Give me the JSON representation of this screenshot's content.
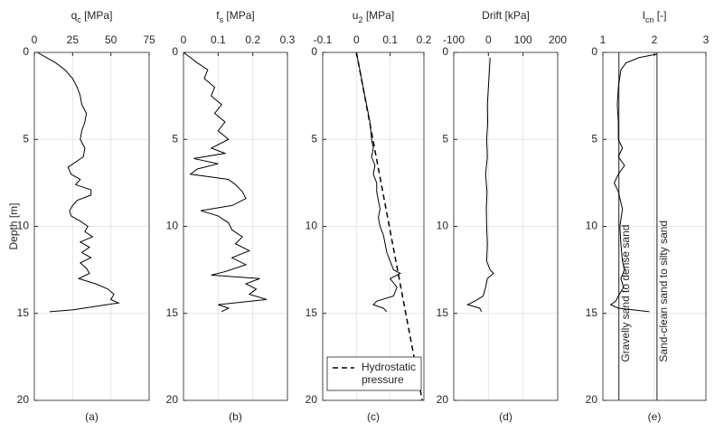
{
  "chart_data": [
    {
      "type": "line",
      "title_parts": [
        "q",
        "c",
        " [MPa]"
      ],
      "ylabel": "Depth [m]",
      "caption": "(a)",
      "xlim": [
        0,
        75
      ],
      "xticks": [
        0,
        25,
        50,
        75
      ],
      "ylim": [
        0,
        20
      ],
      "yticks": [
        0,
        5,
        10,
        15,
        20
      ],
      "invert_y": true,
      "grid": true,
      "series": [
        {
          "color": "#000000",
          "x": [
            2,
            8,
            14,
            20,
            25,
            28,
            30,
            31,
            34,
            33,
            31,
            30,
            33,
            32,
            27,
            22,
            24,
            30,
            27,
            37,
            37,
            28,
            25,
            23,
            24,
            30,
            35,
            33,
            38,
            30,
            36,
            31,
            37,
            30,
            34,
            36,
            29,
            40,
            48,
            52,
            50,
            55,
            40,
            25,
            10
          ],
          "y": [
            0,
            0.3,
            0.6,
            1,
            1.5,
            2,
            2.5,
            3,
            3.5,
            4,
            4.5,
            5,
            5.5,
            6,
            6.3,
            6.6,
            7,
            7.3,
            7.6,
            7.9,
            8.2,
            8.5,
            8.8,
            9.1,
            9.4,
            9.7,
            10,
            10.3,
            10.6,
            10.9,
            11.2,
            11.5,
            11.8,
            12.1,
            12.4,
            12.7,
            13,
            13.3,
            13.6,
            13.9,
            14.2,
            14.4,
            14.6,
            14.8,
            14.9
          ]
        }
      ]
    },
    {
      "type": "line",
      "title_parts": [
        "f",
        "s",
        " [MPa]"
      ],
      "caption": "(b)",
      "xlim": [
        0,
        0.3
      ],
      "xticks": [
        0,
        0.1,
        0.2,
        0.3
      ],
      "ylim": [
        0,
        20
      ],
      "yticks": [
        0,
        5,
        10,
        15,
        20
      ],
      "invert_y": true,
      "grid": true,
      "series": [
        {
          "color": "#000000",
          "x": [
            0,
            0.02,
            0.04,
            0.07,
            0.06,
            0.09,
            0.08,
            0.11,
            0.09,
            0.12,
            0.1,
            0.13,
            0.08,
            0.12,
            0.03,
            0.1,
            0.04,
            0.02,
            0.13,
            0.15,
            0.17,
            0.18,
            0.14,
            0.05,
            0.1,
            0.13,
            0.14,
            0.17,
            0.15,
            0.19,
            0.14,
            0.18,
            0.12,
            0.08,
            0.22,
            0.18,
            0.21,
            0.19,
            0.24,
            0.1,
            0.13,
            0.11
          ],
          "y": [
            0,
            0.3,
            0.6,
            1,
            1.5,
            2,
            2.5,
            3,
            3.5,
            4,
            4.5,
            5,
            5.5,
            5.8,
            6.1,
            6.4,
            6.7,
            7,
            7.3,
            7.6,
            8,
            8.4,
            8.8,
            9.1,
            9.4,
            9.8,
            10.2,
            10.6,
            11,
            11.4,
            11.8,
            12.2,
            12.6,
            12.8,
            13,
            13.3,
            13.6,
            13.9,
            14.2,
            14.5,
            14.7,
            14.9
          ]
        }
      ]
    },
    {
      "type": "line",
      "title_parts": [
        "u",
        "2",
        " [MPa]"
      ],
      "caption": "(c)",
      "xlim": [
        -0.1,
        0.2
      ],
      "xticks": [
        -0.1,
        0,
        0.1,
        0.2
      ],
      "ylim": [
        0,
        20
      ],
      "yticks": [
        0,
        5,
        10,
        15,
        20
      ],
      "invert_y": true,
      "grid": true,
      "legend": "bottom",
      "series": [
        {
          "color": "#000000",
          "x": [
            0,
            0.01,
            0.02,
            0.03,
            0.04,
            0.045,
            0.05,
            0.045,
            0.055,
            0.05,
            0.06,
            0.06,
            0.065,
            0.07,
            0.065,
            0.07,
            0.08,
            0.085,
            0.09,
            0.1,
            0.11,
            0.13,
            0.1,
            0.12,
            0.11,
            0.06,
            0.05,
            0.08,
            0.09
          ],
          "y": [
            0,
            1,
            2,
            3,
            4,
            5,
            5.5,
            6,
            6.5,
            7,
            7.5,
            8,
            8.5,
            9,
            9.5,
            10,
            10.5,
            11,
            11.5,
            12,
            12.5,
            12.7,
            13,
            13.5,
            14,
            14.3,
            14.5,
            14.7,
            14.9
          ]
        },
        {
          "name": "Hydrostatic pressure",
          "color": "#000000",
          "dashed": true,
          "x": [
            0,
            0.195
          ],
          "y": [
            0,
            20
          ]
        }
      ]
    },
    {
      "type": "line",
      "title_parts": [
        "Drift [kPa]"
      ],
      "caption": "(d)",
      "xlim": [
        -100,
        200
      ],
      "xticks": [
        -100,
        0,
        100,
        200
      ],
      "ylim": [
        0,
        20
      ],
      "yticks": [
        0,
        5,
        10,
        15,
        20
      ],
      "invert_y": true,
      "grid": true,
      "series": [
        {
          "color": "#000000",
          "x": [
            5,
            3,
            0,
            -3,
            -2,
            -5,
            -3,
            -8,
            -6,
            -4,
            -6,
            -5,
            -3,
            -5,
            5,
            15,
            -3,
            -8,
            -15,
            -40,
            -60,
            -25,
            -20
          ],
          "y": [
            0.3,
            1,
            2,
            3,
            4,
            5,
            6,
            7,
            7.5,
            8,
            9,
            10,
            11,
            12,
            12.5,
            12.7,
            13,
            13.5,
            14,
            14.3,
            14.5,
            14.7,
            14.9
          ]
        }
      ]
    },
    {
      "type": "line",
      "title_parts": [
        "I",
        "cn",
        " [-]"
      ],
      "caption": "(e)",
      "xlim": [
        1,
        3
      ],
      "xticks": [
        1,
        2,
        3
      ],
      "ylim": [
        0,
        20
      ],
      "yticks": [
        0,
        5,
        10,
        15,
        20
      ],
      "invert_y": true,
      "grid": true,
      "reference_lines": [
        {
          "x": 1.31,
          "label": "Gravelly sand to dense sand",
          "color": "#444444"
        },
        {
          "x": 2.05,
          "label": "Sand-clean sand to silty sand",
          "color": "#444444"
        }
      ],
      "series": [
        {
          "color": "#000000",
          "x": [
            2.05,
            1.7,
            1.45,
            1.35,
            1.3,
            1.28,
            1.3,
            1.3,
            1.38,
            1.3,
            1.42,
            1.3,
            1.22,
            1.3,
            1.38,
            1.33,
            1.35,
            1.38,
            1.42,
            1.35,
            1.4,
            1.3,
            1.25,
            1.15,
            1.3,
            1.9
          ],
          "y": [
            0.1,
            0.3,
            0.6,
            1,
            2,
            3,
            4,
            5,
            5.5,
            6,
            6.5,
            7,
            7.5,
            8,
            9,
            10,
            11,
            12,
            12.5,
            13,
            13.5,
            14,
            14.3,
            14.5,
            14.7,
            14.9
          ]
        }
      ]
    }
  ]
}
